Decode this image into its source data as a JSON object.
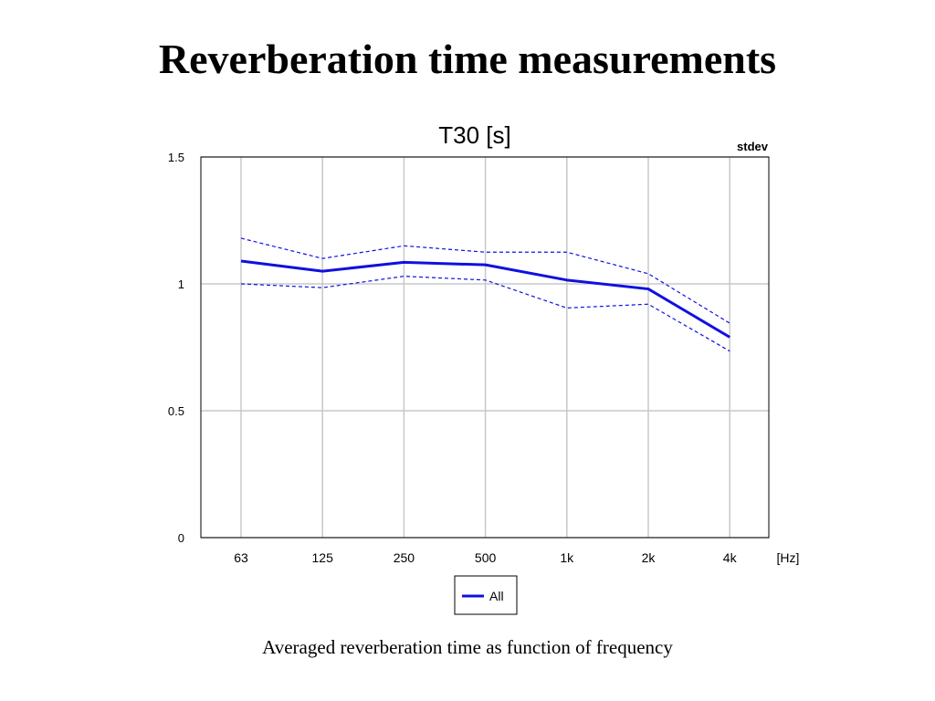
{
  "slide": {
    "title": "Reverberation time measurements",
    "caption": "Averaged reverberation time as function of frequency"
  },
  "chart_data": {
    "type": "line",
    "title": "T30 [s]",
    "corner_label": "stdev",
    "x_unit_label": "[Hz]",
    "categories": [
      "63",
      "125",
      "250",
      "500",
      "1k",
      "2k",
      "4k"
    ],
    "ylim": [
      0,
      1.5
    ],
    "yticks": [
      0,
      0.5,
      1,
      1.5
    ],
    "ytick_labels": [
      "0",
      "0.5",
      "1",
      "1.5"
    ],
    "grid": true,
    "legend_position": "bottom-center",
    "series": [
      {
        "name": "All",
        "values": [
          1.09,
          1.05,
          1.085,
          1.075,
          1.015,
          0.98,
          0.79
        ],
        "upper": [
          1.18,
          1.1,
          1.15,
          1.125,
          1.125,
          1.04,
          0.845
        ],
        "lower": [
          1.0,
          0.985,
          1.03,
          1.015,
          0.905,
          0.92,
          0.735
        ],
        "color": "#1010e0"
      }
    ]
  }
}
